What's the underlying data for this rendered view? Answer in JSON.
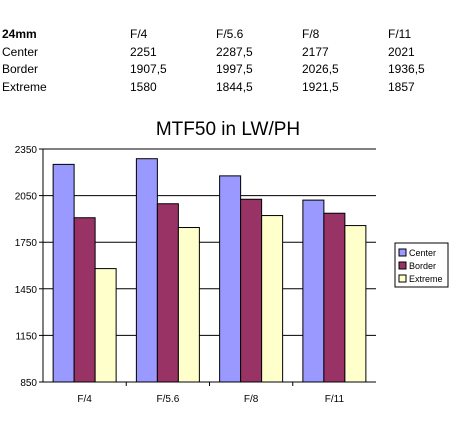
{
  "table": {
    "header": [
      "24mm",
      "F/4",
      "F/5.6",
      "F/8",
      "F/11"
    ],
    "rows": [
      [
        "Center",
        "2251",
        "2287,5",
        "2177",
        "2021"
      ],
      [
        "Border",
        "1907,5",
        "1997,5",
        "2026,5",
        "1936,5"
      ],
      [
        "Extreme",
        "1580",
        "1844,5",
        "1921,5",
        "1857"
      ]
    ]
  },
  "chart_data": {
    "type": "bar",
    "title": "MTF50 in LW/PH",
    "categories": [
      "F/4",
      "F/5.6",
      "F/8",
      "F/11"
    ],
    "series": [
      {
        "name": "Center",
        "values": [
          2251,
          2287.5,
          2177,
          2021
        ],
        "color": "#9999ff"
      },
      {
        "name": "Border",
        "values": [
          1907.5,
          1997.5,
          2026.5,
          1936.5
        ],
        "color": "#993366"
      },
      {
        "name": "Extreme",
        "values": [
          1580,
          1844.5,
          1921.5,
          1857
        ],
        "color": "#ffffcc"
      }
    ],
    "yticks": [
      "850",
      "1150",
      "1450",
      "1750",
      "2050",
      "2350"
    ],
    "ylim": [
      850,
      2350
    ],
    "xlabel": "",
    "ylabel": "",
    "grid": true,
    "legend": "right"
  }
}
